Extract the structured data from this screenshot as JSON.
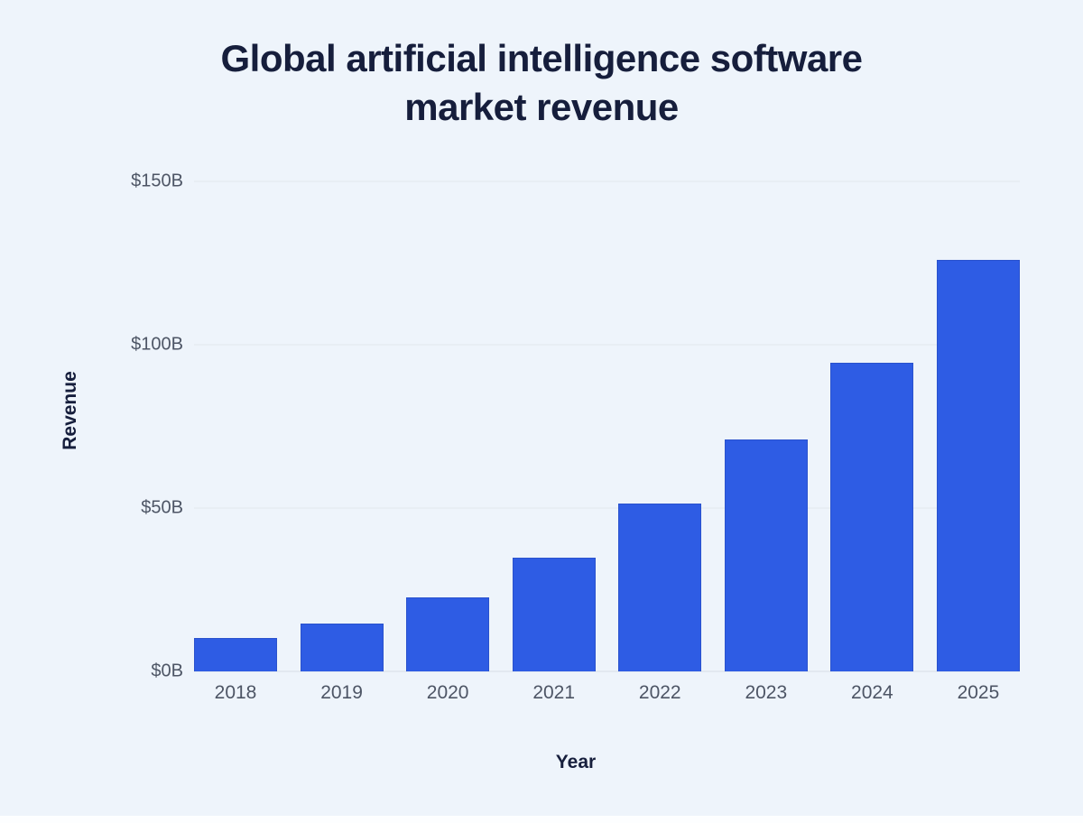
{
  "header": {
    "title_line1": "Global artificial intelligence software",
    "title_line2": "market revenue"
  },
  "chart_data": {
    "type": "bar",
    "title": "Global artificial intelligence software market revenue",
    "xlabel": "Year",
    "ylabel": "Revenue",
    "categories": [
      "2018",
      "2019",
      "2020",
      "2021",
      "2022",
      "2023",
      "2024",
      "2025"
    ],
    "values": [
      10.1,
      14.7,
      22.6,
      34.9,
      51.3,
      70.9,
      94.4,
      126.0
    ],
    "ylim": [
      0,
      150
    ],
    "yticks": [
      {
        "value": 0,
        "label": "$0B"
      },
      {
        "value": 50,
        "label": "$50B"
      },
      {
        "value": 100,
        "label": "$100B"
      },
      {
        "value": 150,
        "label": "$150B"
      }
    ],
    "grid": true,
    "legend": null,
    "bar_color": "#2e5ce4"
  },
  "colors": {
    "background": "#eef4fb",
    "bar": "#2e5ce4",
    "bar_edge": "#2a52cd",
    "title": "#161e3c",
    "tick": "#4d5565",
    "gridline": "#e2e7ee",
    "axis_line": "#d7dde5",
    "bottom_strip": "#fdfeff"
  }
}
